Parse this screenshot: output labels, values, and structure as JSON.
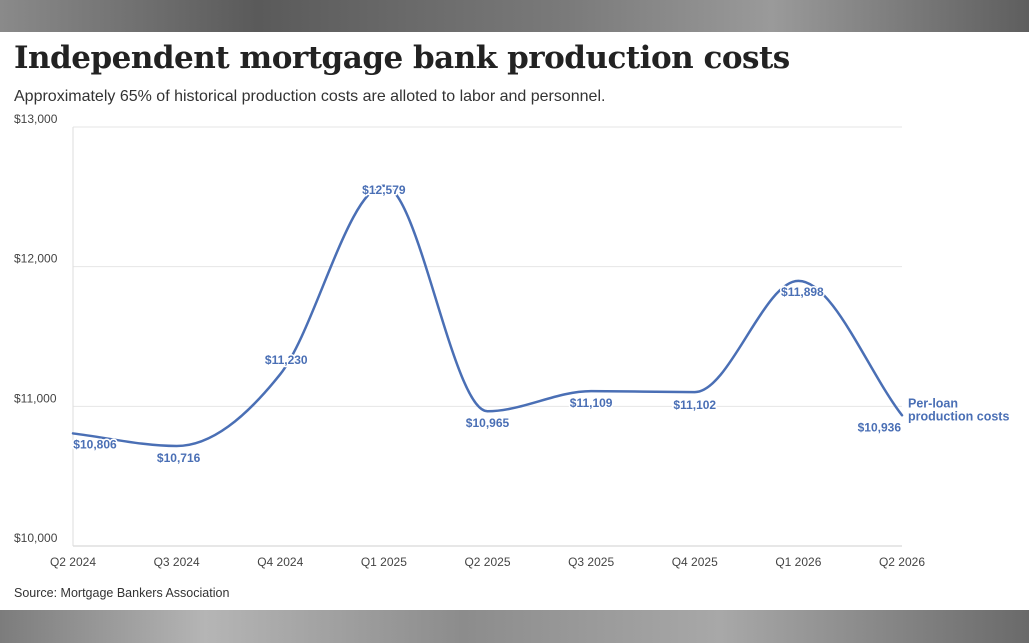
{
  "title": "Independent mortgage bank production costs",
  "subtitle": "Approximately 65% of historical production costs are alloted to labor and personnel.",
  "source": "Source: Mortgage Bankers Association",
  "chart_data": {
    "type": "line",
    "title": "Independent mortgage bank production costs",
    "subtitle": "Approximately 65% of historical production costs are alloted to labor and personnel.",
    "categories": [
      "Q2 2024",
      "Q3 2024",
      "Q4 2024",
      "Q1 2025",
      "Q2 2025",
      "Q3 2025",
      "Q4 2025",
      "Q1 2026",
      "Q2 2026"
    ],
    "series": [
      {
        "name": "Per-loan production costs",
        "name_lines": [
          "Per-loan",
          "production costs"
        ],
        "values": [
          10806,
          10716,
          11230,
          12579,
          10965,
          11109,
          11102,
          11898,
          10936
        ],
        "labels": [
          "$10,806",
          "$10,716",
          "$11,230",
          "$12,579",
          "$10,965",
          "$11,109",
          "$11,102",
          "$11,898",
          "$10,936"
        ],
        "color": "#4a6fb5"
      }
    ],
    "ylim": [
      10000,
      13000
    ],
    "yticks": [
      10000,
      11000,
      12000,
      13000
    ],
    "ytick_labels": [
      "$10,000",
      "$11,000",
      "$12,000",
      "$13,000"
    ],
    "grid": true,
    "gridline_color": "#e6e6e6"
  }
}
